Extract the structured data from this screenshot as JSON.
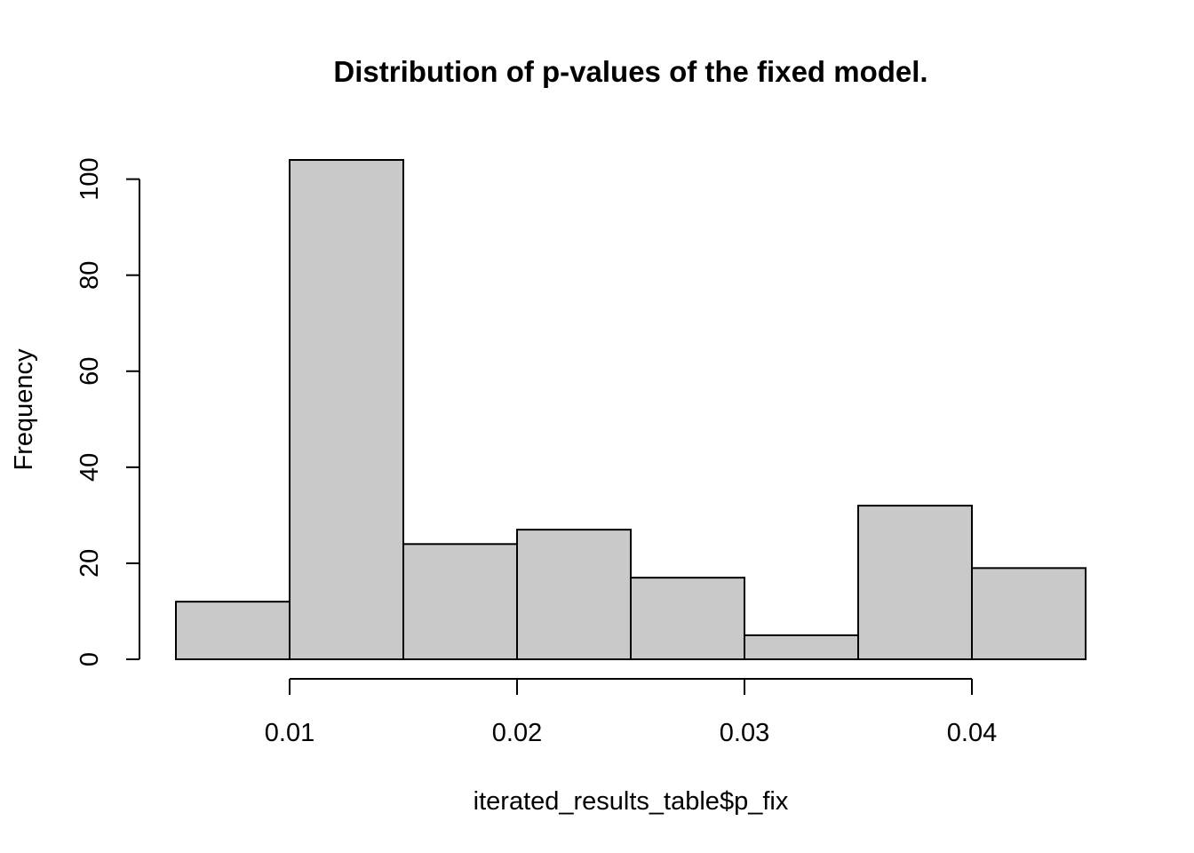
{
  "chart_data": {
    "type": "bar",
    "title": "Distribution of p-values of the fixed model.",
    "xlabel": "iterated_results_table$p_fix",
    "ylabel": "Frequency",
    "bins": [
      {
        "start": 0.005,
        "end": 0.01,
        "count": 12
      },
      {
        "start": 0.01,
        "end": 0.015,
        "count": 104
      },
      {
        "start": 0.015,
        "end": 0.02,
        "count": 24
      },
      {
        "start": 0.02,
        "end": 0.025,
        "count": 27
      },
      {
        "start": 0.025,
        "end": 0.03,
        "count": 17
      },
      {
        "start": 0.03,
        "end": 0.035,
        "count": 5
      },
      {
        "start": 0.035,
        "end": 0.04,
        "count": 32
      },
      {
        "start": 0.04,
        "end": 0.045,
        "count": 19
      }
    ],
    "xlim": [
      0.005,
      0.045
    ],
    "ylim": [
      0,
      104
    ],
    "x_ticks": [
      {
        "value": 0.01,
        "label": "0.01"
      },
      {
        "value": 0.02,
        "label": "0.02"
      },
      {
        "value": 0.03,
        "label": "0.03"
      },
      {
        "value": 0.04,
        "label": "0.04"
      }
    ],
    "y_ticks": [
      {
        "value": 0,
        "label": "0"
      },
      {
        "value": 20,
        "label": "20"
      },
      {
        "value": 40,
        "label": "40"
      },
      {
        "value": 60,
        "label": "60"
      },
      {
        "value": 80,
        "label": "80"
      },
      {
        "value": 100,
        "label": "100"
      }
    ],
    "bar_fill": "#c9c9c9",
    "bar_stroke": "#000000",
    "grid": false,
    "legend": "none"
  }
}
